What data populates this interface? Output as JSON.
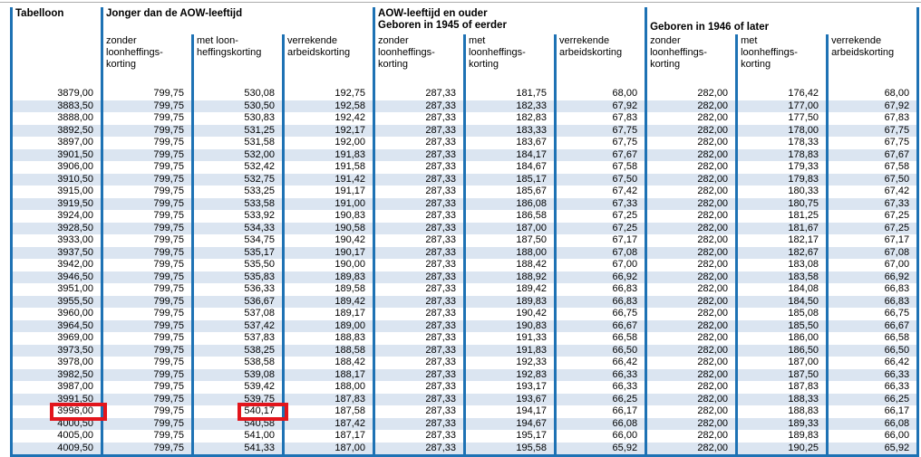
{
  "table": {
    "corner_label": "Tabelloon",
    "groups": [
      {
        "title": "Jonger dan de AOW-leeftijd",
        "columns": [
          "zonder\nloonheffings-\nkorting",
          "met loon-\nheffingskorting",
          "verrekende\narbeidskorting"
        ]
      },
      {
        "title": "AOW-leeftijd en ouder\nGeboren in 1945 of eerder",
        "columns": [
          "zonder\nloonheffings-\nkorting",
          "met\nloonheffings-\nkorting",
          "verrekende\narbeidskorting"
        ]
      },
      {
        "title": "Geboren in 1946 of later",
        "columns": [
          "zonder\nloonheffings-\nkorting",
          "met\nloonheffings-\nkorting",
          "verrekende\narbeidskorting"
        ]
      }
    ],
    "rows": [
      [
        "3879,00",
        "799,75",
        "530,08",
        "192,75",
        "287,33",
        "181,75",
        "68,00",
        "282,00",
        "176,42",
        "68,00"
      ],
      [
        "3883,50",
        "799,75",
        "530,50",
        "192,58",
        "287,33",
        "182,33",
        "67,92",
        "282,00",
        "177,00",
        "67,92"
      ],
      [
        "3888,00",
        "799,75",
        "530,83",
        "192,42",
        "287,33",
        "182,83",
        "67,83",
        "282,00",
        "177,50",
        "67,83"
      ],
      [
        "3892,50",
        "799,75",
        "531,25",
        "192,17",
        "287,33",
        "183,33",
        "67,75",
        "282,00",
        "178,00",
        "67,75"
      ],
      [
        "3897,00",
        "799,75",
        "531,58",
        "192,00",
        "287,33",
        "183,67",
        "67,75",
        "282,00",
        "178,33",
        "67,75"
      ],
      [
        "3901,50",
        "799,75",
        "532,00",
        "191,83",
        "287,33",
        "184,17",
        "67,67",
        "282,00",
        "178,83",
        "67,67"
      ],
      [
        "3906,00",
        "799,75",
        "532,42",
        "191,58",
        "287,33",
        "184,67",
        "67,58",
        "282,00",
        "179,33",
        "67,58"
      ],
      [
        "3910,50",
        "799,75",
        "532,75",
        "191,42",
        "287,33",
        "185,17",
        "67,50",
        "282,00",
        "179,83",
        "67,50"
      ],
      [
        "3915,00",
        "799,75",
        "533,25",
        "191,17",
        "287,33",
        "185,67",
        "67,42",
        "282,00",
        "180,33",
        "67,42"
      ],
      [
        "3919,50",
        "799,75",
        "533,58",
        "191,00",
        "287,33",
        "186,08",
        "67,33",
        "282,00",
        "180,75",
        "67,33"
      ],
      [
        "3924,00",
        "799,75",
        "533,92",
        "190,83",
        "287,33",
        "186,58",
        "67,25",
        "282,00",
        "181,25",
        "67,25"
      ],
      [
        "3928,50",
        "799,75",
        "534,33",
        "190,58",
        "287,33",
        "187,00",
        "67,25",
        "282,00",
        "181,67",
        "67,25"
      ],
      [
        "3933,00",
        "799,75",
        "534,75",
        "190,42",
        "287,33",
        "187,50",
        "67,17",
        "282,00",
        "182,17",
        "67,17"
      ],
      [
        "3937,50",
        "799,75",
        "535,17",
        "190,17",
        "287,33",
        "188,00",
        "67,08",
        "282,00",
        "182,67",
        "67,08"
      ],
      [
        "3942,00",
        "799,75",
        "535,50",
        "190,00",
        "287,33",
        "188,42",
        "67,00",
        "282,00",
        "183,08",
        "67,00"
      ],
      [
        "3946,50",
        "799,75",
        "535,83",
        "189,83",
        "287,33",
        "188,92",
        "66,92",
        "282,00",
        "183,58",
        "66,92"
      ],
      [
        "3951,00",
        "799,75",
        "536,33",
        "189,58",
        "287,33",
        "189,42",
        "66,83",
        "282,00",
        "184,08",
        "66,83"
      ],
      [
        "3955,50",
        "799,75",
        "536,67",
        "189,42",
        "287,33",
        "189,83",
        "66,83",
        "282,00",
        "184,50",
        "66,83"
      ],
      [
        "3960,00",
        "799,75",
        "537,08",
        "189,17",
        "287,33",
        "190,42",
        "66,75",
        "282,00",
        "185,08",
        "66,75"
      ],
      [
        "3964,50",
        "799,75",
        "537,42",
        "189,00",
        "287,33",
        "190,83",
        "66,67",
        "282,00",
        "185,50",
        "66,67"
      ],
      [
        "3969,00",
        "799,75",
        "537,83",
        "188,83",
        "287,33",
        "191,33",
        "66,58",
        "282,00",
        "186,00",
        "66,58"
      ],
      [
        "3973,50",
        "799,75",
        "538,25",
        "188,58",
        "287,33",
        "191,83",
        "66,50",
        "282,00",
        "186,50",
        "66,50"
      ],
      [
        "3978,00",
        "799,75",
        "538,58",
        "188,42",
        "287,33",
        "192,33",
        "66,42",
        "282,00",
        "187,00",
        "66,42"
      ],
      [
        "3982,50",
        "799,75",
        "539,08",
        "188,17",
        "287,33",
        "192,83",
        "66,33",
        "282,00",
        "187,50",
        "66,33"
      ],
      [
        "3987,00",
        "799,75",
        "539,42",
        "188,00",
        "287,33",
        "193,17",
        "66,33",
        "282,00",
        "187,83",
        "66,33"
      ],
      [
        "3991,50",
        "799,75",
        "539,75",
        "187,83",
        "287,33",
        "193,67",
        "66,25",
        "282,00",
        "188,33",
        "66,25"
      ],
      [
        "3996,00",
        "799,75",
        "540,17",
        "187,58",
        "287,33",
        "194,17",
        "66,17",
        "282,00",
        "188,83",
        "66,17"
      ],
      [
        "4000,50",
        "799,75",
        "540,58",
        "187,42",
        "287,33",
        "194,67",
        "66,08",
        "282,00",
        "189,33",
        "66,08"
      ],
      [
        "4005,00",
        "799,75",
        "541,00",
        "187,17",
        "287,33",
        "195,17",
        "66,00",
        "282,00",
        "189,83",
        "66,00"
      ],
      [
        "4009,50",
        "799,75",
        "541,33",
        "187,00",
        "287,33",
        "195,58",
        "65,92",
        "282,00",
        "190,25",
        "65,92"
      ]
    ]
  },
  "highlights": [
    {
      "value": "3996,00",
      "row_index": 26,
      "col_index": 0
    },
    {
      "value": "540,17",
      "row_index": 26,
      "col_index": 2
    }
  ],
  "colors": {
    "accent_blue": "#1e72b4",
    "stripe_blue": "#dbe5f1",
    "highlight_red": "#e2151c",
    "top_line_gray": "#ababab"
  }
}
